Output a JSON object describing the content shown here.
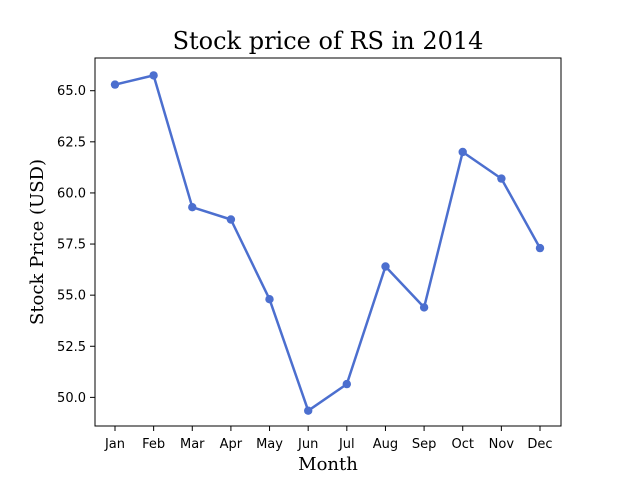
{
  "chart_data": {
    "type": "line",
    "title": "Stock price of RS in 2014",
    "xlabel": "Month",
    "ylabel": "Stock Price (USD)",
    "categories": [
      "Jan",
      "Feb",
      "Mar",
      "Apr",
      "May",
      "Jun",
      "Jul",
      "Aug",
      "Sep",
      "Oct",
      "Nov",
      "Dec"
    ],
    "series": [
      {
        "values": [
          65.3,
          65.75,
          59.3,
          58.7,
          54.8,
          49.35,
          50.65,
          56.4,
          54.4,
          62.0,
          60.7,
          57.3
        ],
        "color": "#4c6fcf"
      }
    ],
    "ylim": [
      48.6,
      66.6
    ],
    "yticks": [
      50.0,
      52.5,
      55.0,
      57.5,
      60.0,
      62.5,
      65.0
    ],
    "ytick_labels": [
      "50.0",
      "52.5",
      "55.0",
      "57.5",
      "60.0",
      "62.5",
      "65.0"
    ],
    "grid": false,
    "legend": "none",
    "marker": "circle"
  }
}
